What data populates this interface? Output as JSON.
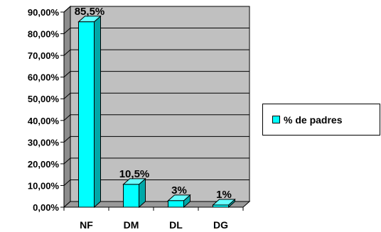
{
  "chart_data": {
    "type": "bar",
    "categories": [
      "NF",
      "DM",
      "DL",
      "DG"
    ],
    "series": [
      {
        "name": "% de padres",
        "values": [
          85.5,
          10.5,
          3,
          1
        ],
        "labels": [
          "85,5%",
          "10,5%",
          "3%",
          "1%"
        ]
      }
    ],
    "ylim": [
      0,
      90
    ],
    "yticks": [
      "0,00%",
      "10,00%",
      "20,00%",
      "30,00%",
      "40,00%",
      "50,00%",
      "60,00%",
      "70,00%",
      "80,00%",
      "90,00%"
    ],
    "grid": true,
    "legend_position": "right",
    "colors": {
      "bar_front": "#00ffff",
      "bar_top": "#66ffff",
      "bar_side": "#00a8a8",
      "plot_wall": "#c0c0c0",
      "floor": "#9a9a9a"
    }
  }
}
